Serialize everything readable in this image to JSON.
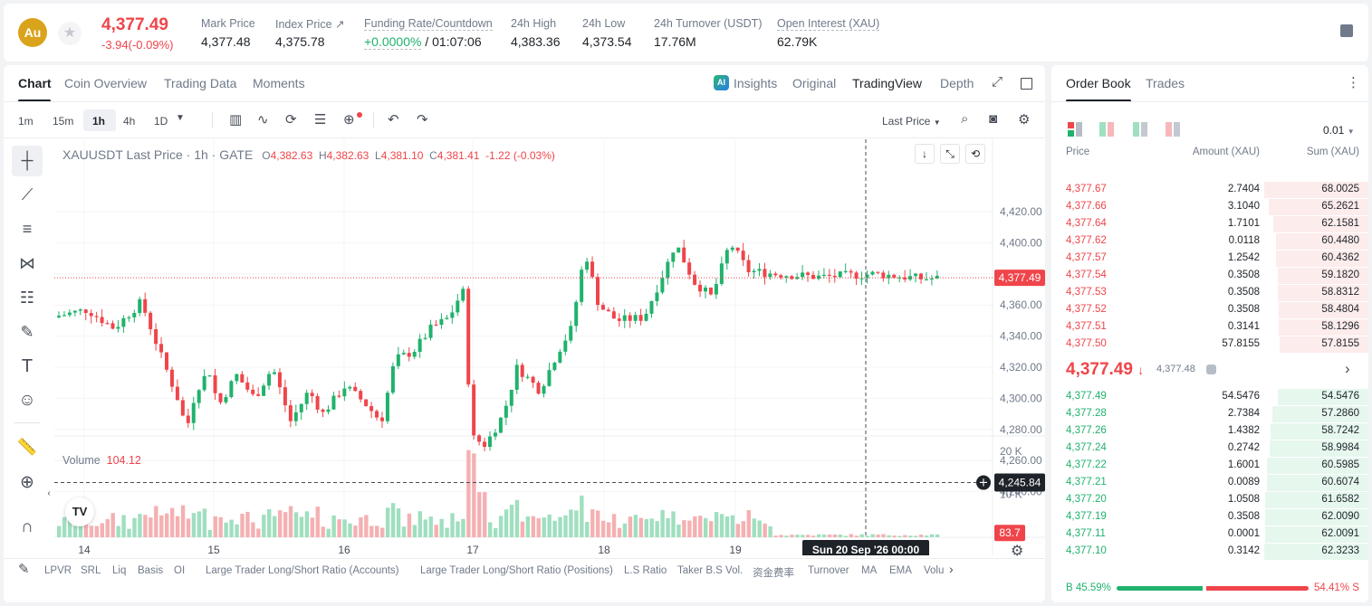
{
  "header": {
    "coin_logo": "Au",
    "last_price": "4,377.49",
    "change": "-3.94(-0.09%)",
    "stats": [
      {
        "label": "Mark Price",
        "value": "4,377.48"
      },
      {
        "label": "Index Price",
        "value": "4,375.78"
      },
      {
        "label": "Funding Rate/Countdown",
        "value": "+0.0000%",
        "value2": "/ 01:07:06"
      },
      {
        "label": "24h High",
        "value": "4,383.36"
      },
      {
        "label": "24h Low",
        "value": "4,373.54"
      },
      {
        "label": "24h Turnover (USDT)",
        "value": "17.76M"
      },
      {
        "label": "Open Interest (XAU)",
        "value": "62.79K"
      }
    ]
  },
  "chart_tabs": [
    "Chart",
    "Coin Overview",
    "Trading Data",
    "Moments"
  ],
  "view_tabs": [
    "Insights",
    "Original",
    "TradingView",
    "Depth"
  ],
  "intervals": [
    "1m",
    "15m",
    "1h",
    "4h",
    "1D"
  ],
  "active_interval": "1h",
  "price_type": "Last Price",
  "legend": {
    "title": "XAUUSDT Last Price · 1h · GATE",
    "o_label": "O",
    "o": "4,382.63",
    "h_label": "H",
    "h": "4,382.63",
    "l_label": "L",
    "l": "4,381.10",
    "c_label": "C",
    "c": "4,381.41",
    "chg": "-1.22 (-0.03%)"
  },
  "volume": {
    "label": "Volume",
    "value": "104.12",
    "last_tag": "83.7"
  },
  "price_axis": [
    "4,420.00",
    "4,400.00",
    "4,380.00",
    "4,360.00",
    "4,340.00",
    "4,320.00",
    "4,300.00",
    "4,280.00",
    "4,260.00",
    "4,240.00"
  ],
  "volume_axis": [
    "20 K",
    "10 K"
  ],
  "last_price_tag": "4,377.49",
  "crosshair_price_tag": "4,245.84",
  "crosshair_time_tag": "Sun 20 Sep '26   00:00",
  "time_axis": [
    "14",
    "15",
    "16",
    "17",
    "18",
    "19"
  ],
  "indicators": [
    "LPVR",
    "SRL",
    "Liq",
    "Basis",
    "OI",
    "Large Trader Long/Short Ratio (Accounts)",
    "Large Trader Long/Short Ratio (Positions)",
    "L.S Ratio",
    "Taker B.S Vol.",
    "资金费率",
    "Turnover",
    "MA",
    "EMA",
    "Volu"
  ],
  "orderbook": {
    "tabs": [
      "Order Book",
      "Trades"
    ],
    "precision": "0.01",
    "headers": [
      "Price",
      "Amount (XAU)",
      "Sum (XAU)"
    ],
    "asks": [
      {
        "price": "4,377.67",
        "amount": "2.7404",
        "sum": "68.0025",
        "depth": 1.0
      },
      {
        "price": "4,377.66",
        "amount": "3.1040",
        "sum": "65.2621",
        "depth": 0.96
      },
      {
        "price": "4,377.64",
        "amount": "1.7101",
        "sum": "62.1581",
        "depth": 0.91
      },
      {
        "price": "4,377.62",
        "amount": "0.0118",
        "sum": "60.4480",
        "depth": 0.89
      },
      {
        "price": "4,377.57",
        "amount": "1.2542",
        "sum": "60.4362",
        "depth": 0.89
      },
      {
        "price": "4,377.54",
        "amount": "0.3508",
        "sum": "59.1820",
        "depth": 0.87
      },
      {
        "price": "4,377.53",
        "amount": "0.3508",
        "sum": "58.8312",
        "depth": 0.87
      },
      {
        "price": "4,377.52",
        "amount": "0.3508",
        "sum": "58.4804",
        "depth": 0.86
      },
      {
        "price": "4,377.51",
        "amount": "0.3141",
        "sum": "58.1296",
        "depth": 0.86
      },
      {
        "price": "4,377.50",
        "amount": "57.8155",
        "sum": "57.8155",
        "depth": 0.85
      }
    ],
    "mid_price": "4,377.49",
    "mid_mark": "4,377.48",
    "bids": [
      {
        "price": "4,377.49",
        "amount": "54.5476",
        "sum": "54.5476",
        "depth": 0.87
      },
      {
        "price": "4,377.28",
        "amount": "2.7384",
        "sum": "57.2860",
        "depth": 0.92
      },
      {
        "price": "4,377.26",
        "amount": "1.4382",
        "sum": "58.7242",
        "depth": 0.94
      },
      {
        "price": "4,377.24",
        "amount": "0.2742",
        "sum": "58.9984",
        "depth": 0.95
      },
      {
        "price": "4,377.22",
        "amount": "1.6001",
        "sum": "60.5985",
        "depth": 0.97
      },
      {
        "price": "4,377.21",
        "amount": "0.0089",
        "sum": "60.6074",
        "depth": 0.97
      },
      {
        "price": "4,377.20",
        "amount": "1.0508",
        "sum": "61.6582",
        "depth": 0.99
      },
      {
        "price": "4,377.19",
        "amount": "0.3508",
        "sum": "62.0090",
        "depth": 0.99
      },
      {
        "price": "4,377.11",
        "amount": "0.0001",
        "sum": "62.0091",
        "depth": 0.99
      },
      {
        "price": "4,377.10",
        "amount": "0.3142",
        "sum": "62.3233",
        "depth": 1.0
      }
    ],
    "buy_ratio": "B 45.59%",
    "sell_ratio": "54.41% S",
    "buy_fraction": 0.4559
  },
  "colors": {
    "up": "#20b26c",
    "down": "#ef454a",
    "accent": "#f0b90b"
  }
}
